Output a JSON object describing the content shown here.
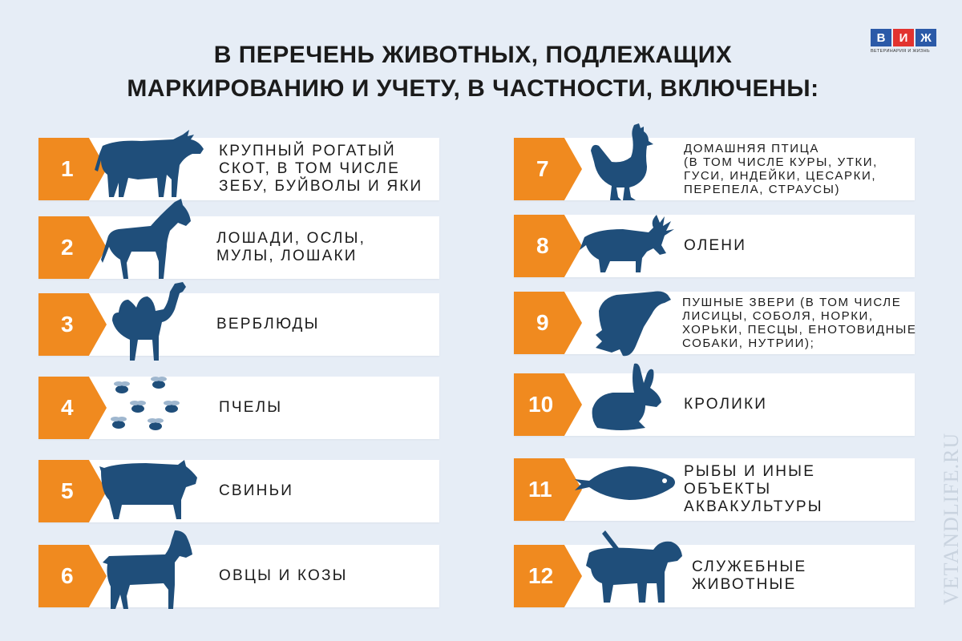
{
  "title": {
    "line1": "В ПЕРЕЧЕНЬ ЖИВОТНЫХ, ПОДЛЕЖАЩИХ",
    "line2": "МАРКИРОВАНИЮ И УЧЕТУ, В ЧАСТНОСТИ, ВКЛЮЧЕНЫ:"
  },
  "logo": {
    "letters": [
      "В",
      "И",
      "Ж"
    ],
    "colors": [
      "#2b5aa8",
      "#e2332f",
      "#2b5aa8"
    ],
    "subtitle": "ВЕТЕРИНАРИЯ И ЖИЗНЬ"
  },
  "watermark": "VETANDLIFE.RU",
  "accent_color": "#f08a1f",
  "icon_color": "#1f4e7a",
  "items": [
    {
      "num": "1",
      "icon": "cow-icon",
      "lines": [
        "КРУПНЫЙ РОГАТЫЙ",
        "СКОТ, В ТОМ ЧИСЛЕ",
        "ЗЕБУ, БУЙВОЛЫ И ЯКИ"
      ]
    },
    {
      "num": "2",
      "icon": "horse-icon",
      "lines": [
        "ЛОШАДИ, ОСЛЫ,",
        "МУЛЫ, ЛОШАКИ"
      ]
    },
    {
      "num": "3",
      "icon": "camel-icon",
      "lines": [
        "ВЕРБЛЮДЫ"
      ]
    },
    {
      "num": "4",
      "icon": "bees-icon",
      "lines": [
        "ПЧЕЛЫ"
      ]
    },
    {
      "num": "5",
      "icon": "pig-icon",
      "lines": [
        "СВИНЬИ"
      ]
    },
    {
      "num": "6",
      "icon": "goat-icon",
      "lines": [
        "ОВЦЫ И КОЗЫ"
      ]
    },
    {
      "num": "7",
      "icon": "rooster-icon",
      "lines": [
        "ДОМАШНЯЯ ПТИЦА",
        "(В ТОМ ЧИСЛЕ КУРЫ, УТКИ,",
        "ГУСИ, ИНДЕЙКИ, ЦЕСАРКИ,",
        "ПЕРЕПЕЛА, СТРАУСЫ)"
      ]
    },
    {
      "num": "8",
      "icon": "deer-icon",
      "lines": [
        "ОЛЕНИ"
      ]
    },
    {
      "num": "9",
      "icon": "ferret-icon",
      "lines": [
        "ПУШНЫЕ ЗВЕРИ (В ТОМ ЧИСЛЕ",
        "ЛИСИЦЫ, СОБОЛЯ, НОРКИ,",
        "ХОРЬКИ, ПЕСЦЫ, ЕНОТОВИДНЫЕ",
        "СОБАКИ, НУТРИИ);"
      ]
    },
    {
      "num": "10",
      "icon": "rabbit-icon",
      "lines": [
        "КРОЛИКИ"
      ]
    },
    {
      "num": "11",
      "icon": "fish-icon",
      "lines": [
        "РЫБЫ И ИНЫЕ",
        "ОБЪЕКТЫ",
        "АКВАКУЛЬТУРЫ"
      ]
    },
    {
      "num": "12",
      "icon": "service-dog-icon",
      "lines": [
        "СЛУЖЕБНЫЕ",
        "ЖИВОТНЫЕ"
      ]
    }
  ]
}
